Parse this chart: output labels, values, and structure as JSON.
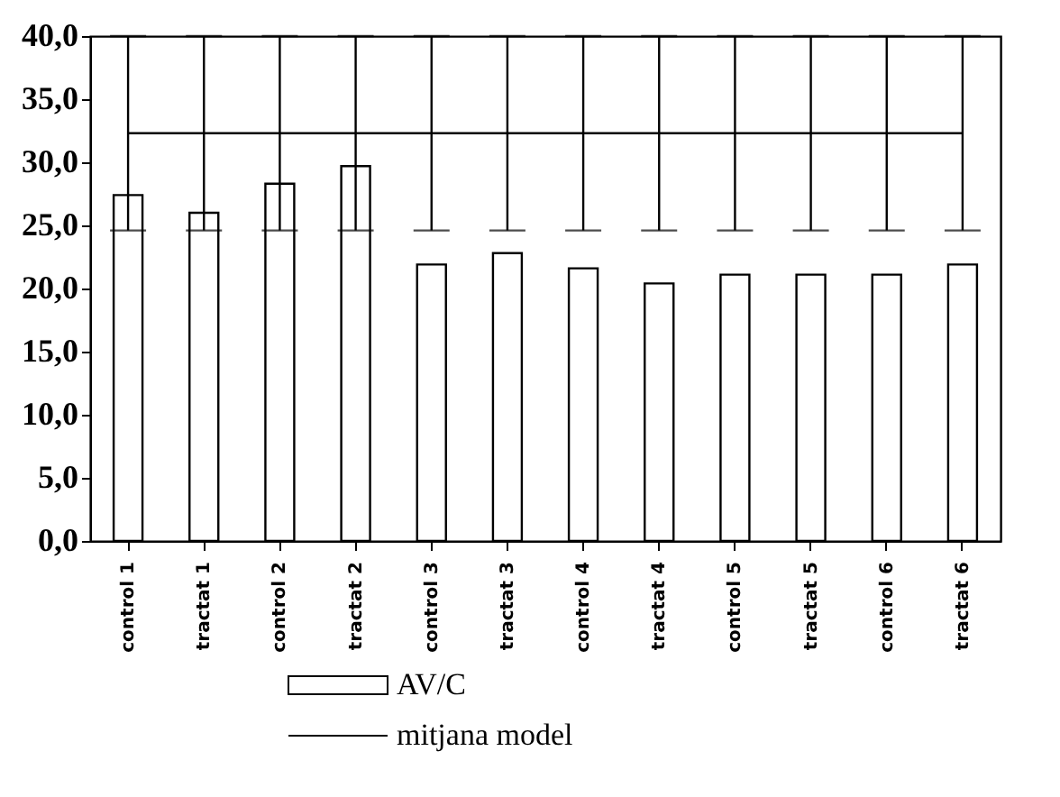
{
  "chart_data": {
    "type": "bar",
    "categories": [
      "control 1",
      "tractat 1",
      "control 2",
      "tractat 2",
      "control 3",
      "tractat 3",
      "control 4",
      "tractat 4",
      "control 5",
      "tractat 5",
      "control 6",
      "tractat 6"
    ],
    "series": [
      {
        "name": "AV/C",
        "color": "#ffffff",
        "values": [
          27.4,
          26.0,
          28.3,
          29.7,
          21.9,
          22.8,
          21.6,
          20.4,
          21.1,
          21.1,
          21.1,
          21.9
        ]
      },
      {
        "name": "mitjana model",
        "type": "line",
        "color": "#000000",
        "values": [
          32.3,
          32.3,
          32.3,
          32.3,
          32.3,
          32.3,
          32.3,
          32.3,
          32.3,
          32.3,
          32.3,
          32.3
        ],
        "errors": [
          [
            24.6,
            40
          ],
          [
            24.6,
            40
          ],
          [
            24.6,
            40
          ],
          [
            24.6,
            40
          ],
          [
            24.6,
            40
          ],
          [
            24.6,
            40
          ],
          [
            24.6,
            40
          ],
          [
            24.6,
            40
          ],
          [
            24.6,
            40
          ],
          [
            24.6,
            40
          ],
          [
            24.6,
            40
          ],
          [
            24.6,
            40
          ]
        ]
      }
    ],
    "ylim": [
      0,
      40
    ],
    "yticks": [
      {
        "value": 0,
        "label": "0,0"
      },
      {
        "value": 5,
        "label": "5,0"
      },
      {
        "value": 10,
        "label": "10,0"
      },
      {
        "value": 15,
        "label": "15,0"
      },
      {
        "value": 20,
        "label": "20,0"
      },
      {
        "value": 25,
        "label": "25,0"
      },
      {
        "value": 30,
        "label": "30,0"
      },
      {
        "value": 35,
        "label": "35,0"
      },
      {
        "value": 40,
        "label": "40,0"
      }
    ],
    "grid": false,
    "legend": "bottom"
  }
}
